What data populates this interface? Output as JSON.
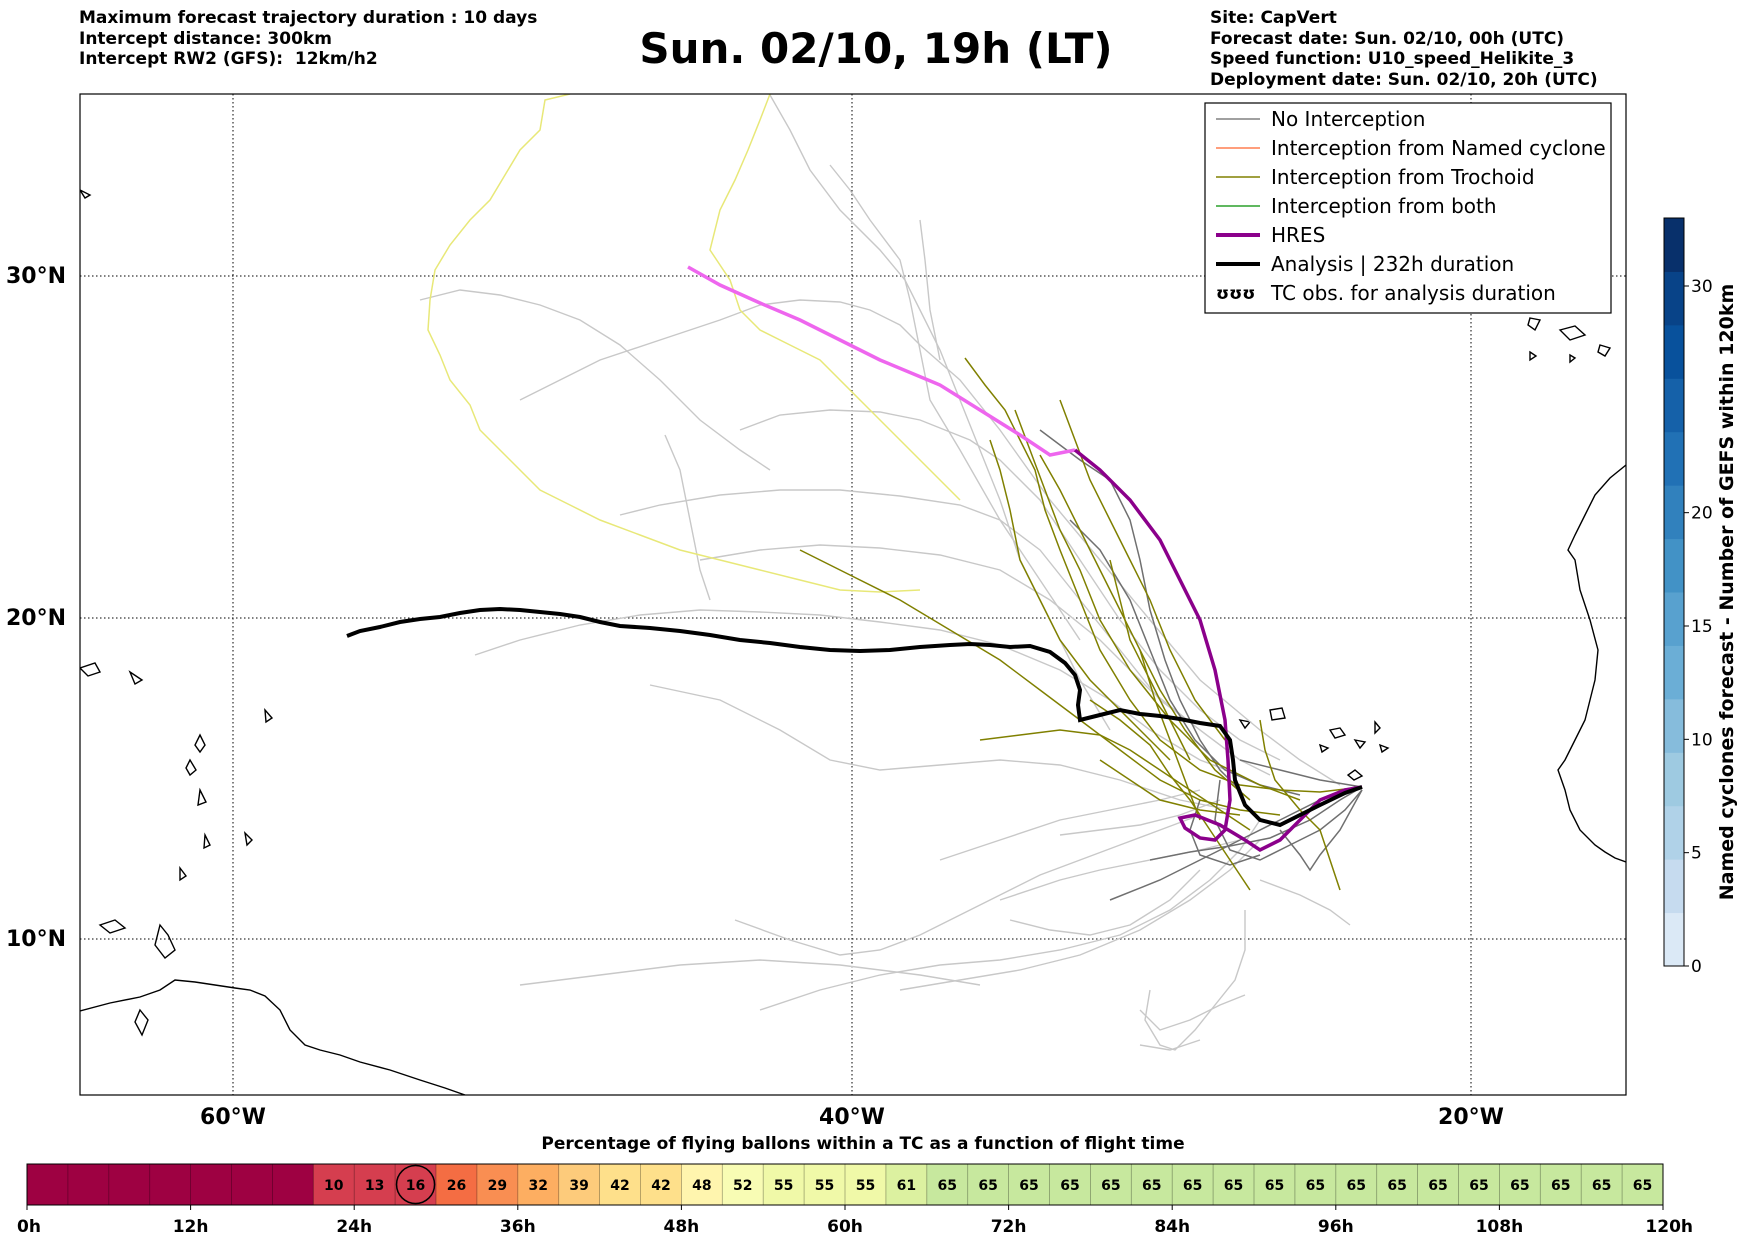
{
  "header_left": [
    "Maximum forecast trajectory duration : 10 days",
    "Intercept distance: 300km",
    "Intercept RW2 (GFS):  12km/h2"
  ],
  "header_right": [
    "Site: CapVert",
    "Forecast date: Sun. 02/10, 00h (UTC)",
    "Speed function: U10_speed_Helikite_3",
    "Deployment date: Sun. 02/10, 20h (UTC)"
  ],
  "title": "Sun. 02/10, 19h (LT)",
  "map": {
    "lat_labels": [
      {
        "lat": 30,
        "label": "30°N"
      },
      {
        "lat": 20,
        "label": "20°N"
      },
      {
        "lat": 10,
        "label": "10°N"
      }
    ],
    "lon_labels": [
      {
        "lon": -60,
        "label": "60°W"
      },
      {
        "lon": -40,
        "label": "40°W"
      },
      {
        "lon": -20,
        "label": "20°W"
      }
    ],
    "legend": [
      {
        "label": "No Interception",
        "color": "#808080",
        "style": "thin"
      },
      {
        "label": "Interception from Named cyclone",
        "color": "#ff7f50",
        "style": "thin"
      },
      {
        "label": "Interception from Trochoid",
        "color": "#808000",
        "style": "thin"
      },
      {
        "label": "Interception from both",
        "color": "#2ca02c",
        "style": "thin"
      },
      {
        "label": "HRES",
        "color": "#8b008b",
        "style": "thick"
      },
      {
        "label": "Analysis | 232h duration",
        "color": "#000000",
        "style": "thick"
      },
      {
        "label": "TC obs. for analysis duration",
        "color": "#000000",
        "style": "symbol",
        "symbol": "ʊʊʊ"
      }
    ]
  },
  "colorbar": {
    "label": "Named cyclones forecast - Number of GEFS within 120km",
    "ticks": [
      "0",
      "5",
      "10",
      "15",
      "20",
      "30"
    ],
    "colors": [
      "#dbe9f6",
      "#c6dbef",
      "#b0d2e8",
      "#9ecae1",
      "#86bcdc",
      "#6baed6",
      "#58a1cf",
      "#4292c6",
      "#3181bd",
      "#2171b5",
      "#1561a9",
      "#08519c",
      "#084388",
      "#08306b"
    ]
  },
  "timeline": {
    "title": "Percentage of flying ballons within a TC as a function of flight time",
    "axis_labels": [
      "0h",
      "12h",
      "24h",
      "36h",
      "48h",
      "60h",
      "72h",
      "84h",
      "96h",
      "108h",
      "120h"
    ],
    "empty_color": "#9e0142",
    "empty_cells": 7,
    "cells": [
      {
        "value": "10",
        "color": "#d53e4f"
      },
      {
        "value": "13",
        "color": "#d53e4f"
      },
      {
        "value": "16",
        "color": "#d53e4f",
        "circled": true
      },
      {
        "value": "26",
        "color": "#f46d43"
      },
      {
        "value": "29",
        "color": "#f98e52"
      },
      {
        "value": "32",
        "color": "#fdae61"
      },
      {
        "value": "39",
        "color": "#fdcb7b"
      },
      {
        "value": "42",
        "color": "#fee08b"
      },
      {
        "value": "42",
        "color": "#fee08b"
      },
      {
        "value": "48",
        "color": "#fff5ae"
      },
      {
        "value": "52",
        "color": "#f8fcb4"
      },
      {
        "value": "55",
        "color": "#f0f9a8"
      },
      {
        "value": "55",
        "color": "#f0f9a8"
      },
      {
        "value": "55",
        "color": "#f0f9a8"
      },
      {
        "value": "61",
        "color": "#dcf1a0"
      },
      {
        "value": "65",
        "color": "#c7e89e"
      },
      {
        "value": "65",
        "color": "#c7e89e"
      },
      {
        "value": "65",
        "color": "#c7e89e"
      },
      {
        "value": "65",
        "color": "#c7e89e"
      },
      {
        "value": "65",
        "color": "#c7e89e"
      },
      {
        "value": "65",
        "color": "#c7e89e"
      },
      {
        "value": "65",
        "color": "#c7e89e"
      },
      {
        "value": "65",
        "color": "#c7e89e"
      },
      {
        "value": "65",
        "color": "#c7e89e"
      },
      {
        "value": "65",
        "color": "#c7e89e"
      },
      {
        "value": "65",
        "color": "#c7e89e"
      },
      {
        "value": "65",
        "color": "#c7e89e"
      },
      {
        "value": "65",
        "color": "#c7e89e"
      },
      {
        "value": "65",
        "color": "#c7e89e"
      },
      {
        "value": "65",
        "color": "#c7e89e"
      },
      {
        "value": "65",
        "color": "#c7e89e"
      },
      {
        "value": "65",
        "color": "#c7e89e"
      },
      {
        "value": "65",
        "color": "#c7e89e"
      }
    ]
  }
}
